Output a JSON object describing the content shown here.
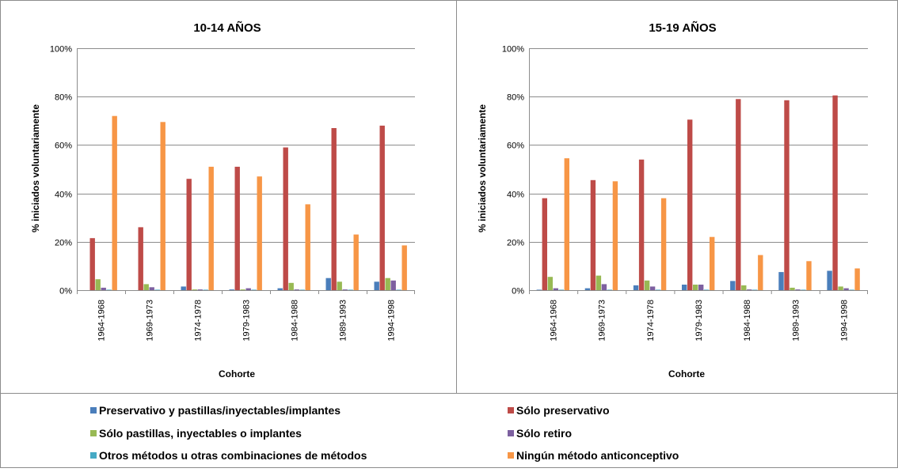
{
  "chart_data": [
    {
      "type": "bar",
      "title": "10-14 AÑOS",
      "xlabel": "Cohorte",
      "ylabel": "% iniciados voluntariamente",
      "ylim": [
        0,
        100
      ],
      "yticks": [
        "0%",
        "20%",
        "40%",
        "60%",
        "80%",
        "100%"
      ],
      "categories": [
        "1964-1968",
        "1969-1973",
        "1974-1978",
        "1979-1983",
        "1984-1988",
        "1989-1993",
        "1994-1998"
      ],
      "grid": true,
      "series": [
        {
          "name": "Preservativo y pastillas/inyectables/implantes",
          "values": [
            0,
            0,
            1.5,
            0.3,
            0.8,
            5,
            3.5
          ]
        },
        {
          "name": "Sólo preservativo",
          "values": [
            21.5,
            26,
            46,
            51,
            59,
            67,
            68
          ]
        },
        {
          "name": "Sólo pastillas, inyectables o implantes",
          "values": [
            4.5,
            2.5,
            0.3,
            0.3,
            3,
            3.5,
            5
          ]
        },
        {
          "name": "Sólo retiro",
          "values": [
            1,
            1.2,
            0.3,
            0.8,
            0.3,
            0.3,
            4
          ]
        },
        {
          "name": "Otros métodos u otras combinaciones de métodos",
          "values": [
            0.2,
            0.2,
            0.2,
            0.2,
            0.2,
            0.2,
            0.2
          ]
        },
        {
          "name": "Ningún método anticonceptivo",
          "values": [
            72,
            69.5,
            51,
            47,
            35.5,
            23,
            18.5
          ]
        }
      ]
    },
    {
      "type": "bar",
      "title": "15-19 AÑOS",
      "xlabel": "Cohorte",
      "ylabel": "% iniciados voluntariamente",
      "ylim": [
        0,
        100
      ],
      "yticks": [
        "0%",
        "20%",
        "40%",
        "60%",
        "80%",
        "100%"
      ],
      "categories": [
        "1964-1968",
        "1969-1973",
        "1974-1978",
        "1979-1983",
        "1984-1988",
        "1989-1993",
        "1994-1998"
      ],
      "grid": true,
      "series": [
        {
          "name": "Preservativo y pastillas/inyectables/implantes",
          "values": [
            0.2,
            0.8,
            2,
            2.3,
            3.8,
            7.5,
            8
          ]
        },
        {
          "name": "Sólo preservativo",
          "values": [
            38,
            45.5,
            54,
            70.5,
            79,
            78.5,
            80.5
          ]
        },
        {
          "name": "Sólo pastillas, inyectables o implantes",
          "values": [
            5.5,
            6,
            4,
            2.3,
            2,
            1,
            1.5
          ]
        },
        {
          "name": "Sólo retiro",
          "values": [
            0.8,
            2.5,
            1.5,
            2.3,
            0.3,
            0.3,
            0.8
          ]
        },
        {
          "name": "Otros métodos u otras combinaciones de métodos",
          "values": [
            0.2,
            0.2,
            0.2,
            0.2,
            0.2,
            0.2,
            0.2
          ]
        },
        {
          "name": "Ningún método anticonceptivo",
          "values": [
            54.5,
            45,
            38,
            22,
            14.5,
            12,
            9
          ]
        }
      ]
    }
  ],
  "colors": [
    "#4a7ebb",
    "#be4b48",
    "#98b954",
    "#7d60a0",
    "#46aac5",
    "#f79646"
  ],
  "legend": {
    "placement": "bottom",
    "items": [
      {
        "label": "Preservativo y pastillas/inyectables/implantes",
        "color": "#4a7ebb"
      },
      {
        "label": "Sólo preservativo",
        "color": "#be4b48"
      },
      {
        "label": "Sólo pastillas, inyectables o implantes",
        "color": "#98b954"
      },
      {
        "label": "Sólo retiro",
        "color": "#7d60a0"
      },
      {
        "label": "Otros métodos u otras combinaciones de métodos",
        "color": "#46aac5"
      },
      {
        "label": "Ningún método anticonceptivo",
        "color": "#f79646"
      }
    ]
  }
}
